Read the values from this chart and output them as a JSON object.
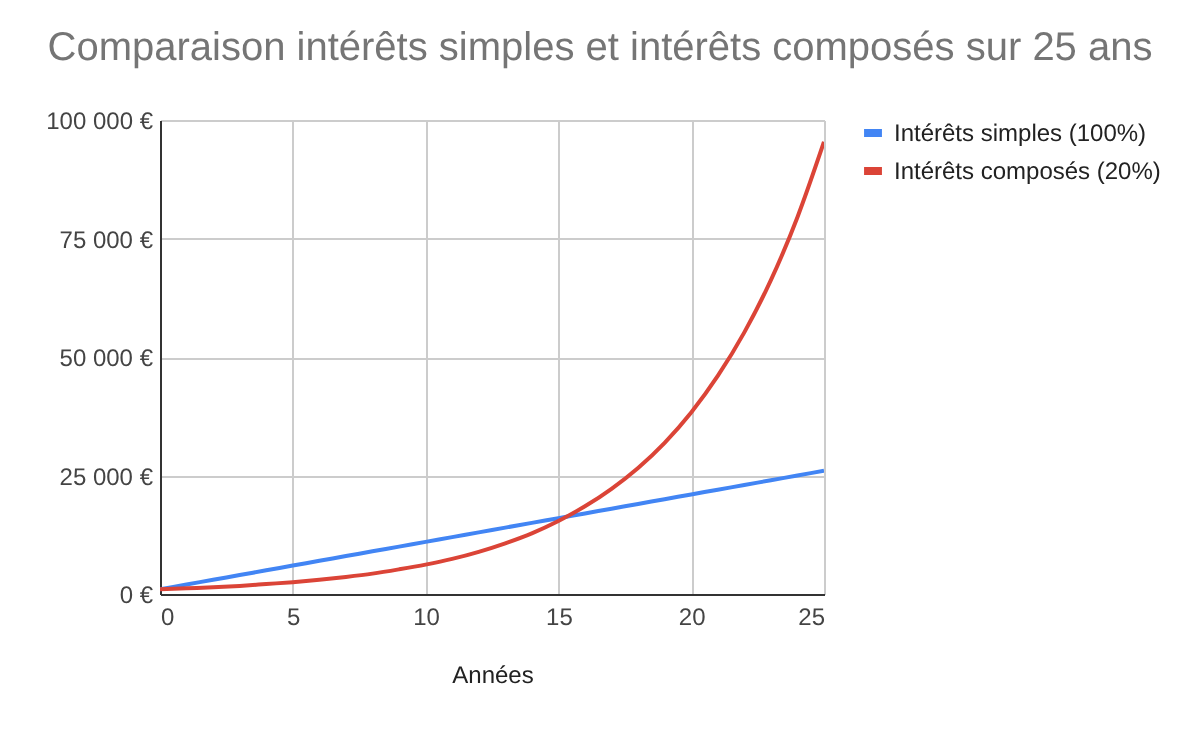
{
  "chart_data": {
    "type": "line",
    "title": "Comparaison intérêts simples et intérêts composés sur 25 ans",
    "xlabel": "Années",
    "x": [
      0,
      1,
      2,
      3,
      4,
      5,
      6,
      7,
      8,
      9,
      10,
      11,
      12,
      13,
      14,
      15,
      16,
      17,
      18,
      19,
      20,
      21,
      22,
      23,
      24,
      25
    ],
    "series": [
      {
        "name": "Intérêts simples (100%)",
        "color": "#4285f4",
        "values": [
          1000,
          2000,
          3000,
          4000,
          5000,
          6000,
          7000,
          8000,
          9000,
          10000,
          11000,
          12000,
          13000,
          14000,
          15000,
          16000,
          17000,
          18000,
          19000,
          20000,
          21000,
          22000,
          23000,
          24000,
          25000,
          26000
        ]
      },
      {
        "name": "Intérêts composés (20%)",
        "color": "#db4437",
        "values": [
          1000,
          1200,
          1400,
          1700,
          2100,
          2500,
          3000,
          3600,
          4300,
          5200,
          6200,
          7400,
          8900,
          10700,
          12800,
          15400,
          18500,
          22200,
          26600,
          31900,
          38300,
          46000,
          55200,
          66200,
          79500,
          95400
        ]
      }
    ],
    "xlim": [
      0,
      25
    ],
    "xticks": [
      0,
      5,
      10,
      15,
      20,
      25
    ],
    "ylim": [
      0,
      100000
    ],
    "yticks": [
      {
        "value": 0,
        "label": "0 €"
      },
      {
        "value": 25000,
        "label": "25 000 €"
      },
      {
        "value": 50000,
        "label": "50 000 €"
      },
      {
        "value": 75000,
        "label": "75 000 €"
      },
      {
        "value": 100000,
        "label": "100 000 €"
      }
    ],
    "grid": true,
    "legend": "top right",
    "line_style": "solid",
    "marker": "none"
  }
}
